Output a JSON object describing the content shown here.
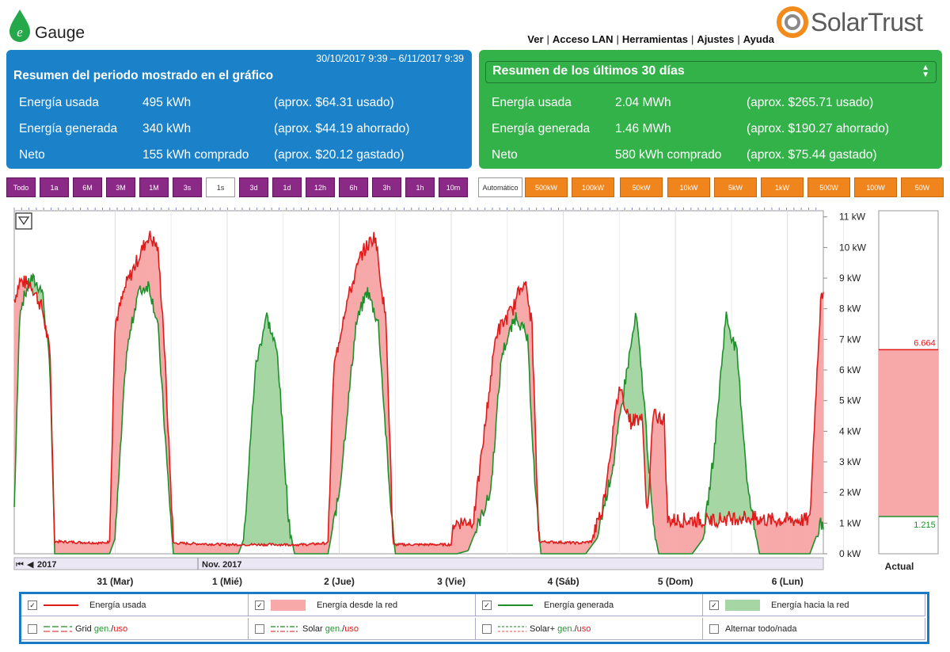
{
  "header": {
    "egauge_logo": {
      "icon": "egauge-drop-icon",
      "text": "Gauge",
      "letter": "e"
    },
    "solartrust_logo": {
      "icon": "solartrust-swirl-icon",
      "text": "SolarTrust"
    },
    "nav": [
      "Ver",
      "Acceso LAN",
      "Herramientas",
      "Ajustes",
      "Ayuda"
    ]
  },
  "period_summary": {
    "range": "30/10/2017 9:39 – 6/11/2017 9:39",
    "title": "Resumen del periodo mostrado en el gráfico",
    "rows": [
      {
        "label": "Energía usada",
        "value": "495 kWh",
        "note": "(aprox. $64.31 usado)"
      },
      {
        "label": "Energía generada",
        "value": "340 kWh",
        "note": "(aprox. $44.19 ahorrado)"
      },
      {
        "label": "Neto",
        "value": "155 kWh comprado",
        "note": "(aprox. $20.12 gastado)"
      }
    ],
    "color": "#1b82c9"
  },
  "summary_30d": {
    "selected": "Resumen de los últimos 30 días",
    "rows": [
      {
        "label": "Energía usada",
        "value": "2.04 MWh",
        "note": "(aprox. $265.71 usado)"
      },
      {
        "label": "Energía generada",
        "value": "1.46 MWh",
        "note": "(aprox. $190.27 ahorrado)"
      },
      {
        "label": "Neto",
        "value": "580 kWh comprado",
        "note": "(aprox. $75.44 gastado)"
      }
    ],
    "color": "#34b24a"
  },
  "time_buttons": {
    "items": [
      "Todo",
      "1a",
      "6M",
      "3M",
      "1M",
      "3s",
      "1s",
      "3d",
      "1d",
      "12h",
      "6h",
      "3h",
      "1h",
      "10m"
    ],
    "selected": "1s"
  },
  "scale_buttons": {
    "items": [
      "Automático",
      "500kW",
      "100kW",
      "50kW",
      "10kW",
      "5kW",
      "1kW",
      "500W",
      "100W",
      "50W"
    ],
    "selected": "Automático"
  },
  "chart_data": {
    "type": "area",
    "x_tick_labels": [
      "31 (Mar)",
      "1 (Mié)",
      "2 (Jue)",
      "3 (Vie)",
      "4 (Sáb)",
      "5 (Dom)",
      "6 (Lun)"
    ],
    "y_tick_labels": [
      "0 kW",
      "1 kW",
      "2 kW",
      "3 kW",
      "4 kW",
      "5 kW",
      "6 kW",
      "7 kW",
      "8 kW",
      "9 kW",
      "10 kW",
      "11 kW"
    ],
    "ylim": [
      0,
      11.2
    ],
    "xlim": [
      0,
      7
    ],
    "navigator_labels": [
      "2017",
      "Nov. 2017"
    ],
    "actual_label": "Actual",
    "actual_values": {
      "used": "6.664",
      "generated": "1.215"
    },
    "colors": {
      "used": "#e01b1b",
      "from_grid": "#f7a9a9",
      "generated": "#1e8f2a",
      "to_grid": "#a6d6a4"
    },
    "series": [
      {
        "name": "Energía usada",
        "points": [
          [
            0,
            8.3
          ],
          [
            0.05,
            8.9
          ],
          [
            0.15,
            8.8
          ],
          [
            0.25,
            8.0
          ],
          [
            0.32,
            6.5
          ],
          [
            0.36,
            0.4
          ],
          [
            0.8,
            0.35
          ],
          [
            0.85,
            0.4
          ],
          [
            0.9,
            7.5
          ],
          [
            1.0,
            8.8
          ],
          [
            1.1,
            9.6
          ],
          [
            1.2,
            10.4
          ],
          [
            1.28,
            10.0
          ],
          [
            1.33,
            7.5
          ],
          [
            1.42,
            0.35
          ],
          [
            1.9,
            0.3
          ],
          [
            2.0,
            0.3
          ],
          [
            2.6,
            0.3
          ],
          [
            2.8,
            0.35
          ],
          [
            2.85,
            6.0
          ],
          [
            2.95,
            8.0
          ],
          [
            3.1,
            9.8
          ],
          [
            3.22,
            10.4
          ],
          [
            3.32,
            7.5
          ],
          [
            3.38,
            0.3
          ],
          [
            3.9,
            0.3
          ],
          [
            3.92,
            1.0
          ],
          [
            4.1,
            1.1
          ],
          [
            4.3,
            7.2
          ],
          [
            4.45,
            8.0
          ],
          [
            4.55,
            9.0
          ],
          [
            4.62,
            7.5
          ],
          [
            4.68,
            0.4
          ],
          [
            5.05,
            0.35
          ],
          [
            5.15,
            0.4
          ],
          [
            5.25,
            1.5
          ],
          [
            5.4,
            5.5
          ],
          [
            5.5,
            4.3
          ],
          [
            5.6,
            4.5
          ],
          [
            5.65,
            1.2
          ],
          [
            5.7,
            4.5
          ],
          [
            5.8,
            4.4
          ],
          [
            5.83,
            1.1
          ],
          [
            6.2,
            1.1
          ],
          [
            6.5,
            1.2
          ],
          [
            6.75,
            1.1
          ],
          [
            7.1,
            1.1
          ],
          [
            7.15,
            5.0
          ],
          [
            7.2,
            8.5
          ]
        ]
      },
      {
        "name": "Energía generada",
        "points": [
          [
            0,
            1.5
          ],
          [
            0.05,
            8.0
          ],
          [
            0.15,
            9.0
          ],
          [
            0.25,
            8.6
          ],
          [
            0.32,
            6.0
          ],
          [
            0.36,
            0
          ],
          [
            0.85,
            0
          ],
          [
            0.9,
            0.5
          ],
          [
            1.0,
            6.5
          ],
          [
            1.1,
            8.5
          ],
          [
            1.2,
            8.8
          ],
          [
            1.28,
            7.5
          ],
          [
            1.38,
            2.0
          ],
          [
            1.42,
            0
          ],
          [
            1.9,
            0
          ],
          [
            2.0,
            0
          ],
          [
            2.05,
            0.5
          ],
          [
            2.15,
            6.0
          ],
          [
            2.25,
            7.8
          ],
          [
            2.35,
            6.5
          ],
          [
            2.45,
            1.0
          ],
          [
            2.5,
            0
          ],
          [
            2.8,
            0
          ],
          [
            2.9,
            2.0
          ],
          [
            3.05,
            7.5
          ],
          [
            3.15,
            8.6
          ],
          [
            3.25,
            7.5
          ],
          [
            3.35,
            2.0
          ],
          [
            3.4,
            0
          ],
          [
            3.95,
            0
          ],
          [
            4.05,
            0.1
          ],
          [
            4.25,
            2.0
          ],
          [
            4.35,
            6.5
          ],
          [
            4.48,
            7.8
          ],
          [
            4.58,
            7.0
          ],
          [
            4.65,
            2.0
          ],
          [
            4.7,
            0
          ],
          [
            5.1,
            0
          ],
          [
            5.2,
            0.5
          ],
          [
            5.35,
            3.0
          ],
          [
            5.45,
            5.6
          ],
          [
            5.55,
            7.8
          ],
          [
            5.62,
            5.0
          ],
          [
            5.7,
            1.0
          ],
          [
            5.75,
            0
          ],
          [
            6.05,
            0
          ],
          [
            6.15,
            0.5
          ],
          [
            6.25,
            3.5
          ],
          [
            6.35,
            7.8
          ],
          [
            6.45,
            6.5
          ],
          [
            6.55,
            2.0
          ],
          [
            6.65,
            0
          ],
          [
            7.1,
            0
          ],
          [
            7.2,
            1.0
          ]
        ]
      }
    ]
  },
  "legend": [
    {
      "label": "Energía usada",
      "checked": true,
      "swatch": "line-red"
    },
    {
      "label": "Energía desde la red",
      "checked": true,
      "swatch": "fill-pink"
    },
    {
      "label": "Energía generada",
      "checked": true,
      "swatch": "line-green"
    },
    {
      "label": "Energía hacia la red",
      "checked": true,
      "swatch": "fill-lightgreen"
    },
    {
      "label": "Grid",
      "gen": "gen.",
      "sep": "/",
      "uso": "uso",
      "checked": false,
      "swatch": "dash-grid"
    },
    {
      "label": "Solar",
      "gen": "gen.",
      "sep": "/",
      "uso": "uso",
      "checked": false,
      "swatch": "dash-solar"
    },
    {
      "label": "Solar+",
      "gen": "gen.",
      "sep": "/",
      "uso": "uso",
      "checked": false,
      "swatch": "dash-solarplus"
    },
    {
      "label": "Alternar todo/nada",
      "checked": false,
      "swatch": "none"
    }
  ]
}
